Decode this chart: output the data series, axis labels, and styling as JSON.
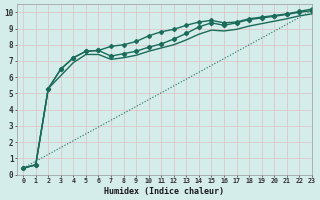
{
  "xlabel": "Humidex (Indice chaleur)",
  "xlim": [
    -0.5,
    23
  ],
  "ylim": [
    0,
    10.5
  ],
  "yticks": [
    0,
    1,
    2,
    3,
    4,
    5,
    6,
    7,
    8,
    9,
    10
  ],
  "xtick_vals": [
    0,
    1,
    2,
    3,
    4,
    5,
    6,
    7,
    8,
    9,
    10,
    11,
    12,
    13,
    14,
    15,
    16,
    17,
    18,
    19,
    20,
    21,
    22,
    23
  ],
  "bg_color": "#d4ecea",
  "grid_color": "#ddc8c8",
  "line_color": "#1a6b5a",
  "lines": [
    {
      "x": [
        0,
        1,
        2,
        3,
        4,
        5,
        6,
        7,
        8,
        9,
        10,
        11,
        12,
        13,
        14,
        15,
        16,
        17,
        18,
        19,
        20,
        21,
        22,
        23
      ],
      "y": [
        0.4,
        0.6,
        5.3,
        6.5,
        7.2,
        7.6,
        7.65,
        7.3,
        7.45,
        7.6,
        7.85,
        8.05,
        8.35,
        8.7,
        9.1,
        9.35,
        9.2,
        9.35,
        9.55,
        9.65,
        9.75,
        9.87,
        10.0,
        10.1
      ],
      "marker": "D",
      "markersize": 2.2,
      "linewidth": 1.0,
      "linestyle": "-"
    },
    {
      "x": [
        0,
        1,
        2,
        3,
        4,
        5,
        6,
        7,
        8,
        9,
        10,
        11,
        12,
        13,
        14,
        15,
        16,
        17,
        18,
        19,
        20,
        21,
        22,
        23
      ],
      "y": [
        0.4,
        0.6,
        5.3,
        6.5,
        7.2,
        7.6,
        7.65,
        7.9,
        8.0,
        8.2,
        8.55,
        8.8,
        8.95,
        9.2,
        9.4,
        9.5,
        9.35,
        9.4,
        9.6,
        9.7,
        9.8,
        9.9,
        10.05,
        10.2
      ],
      "marker": "P",
      "markersize": 2.5,
      "linewidth": 1.0,
      "linestyle": "-"
    },
    {
      "x": [
        0,
        1,
        2,
        3,
        4,
        5,
        6,
        7,
        8,
        9,
        10,
        11,
        12,
        13,
        14,
        15,
        16,
        17,
        18,
        19,
        20,
        21,
        22,
        23
      ],
      "y": [
        0.4,
        0.6,
        5.3,
        6.1,
        6.9,
        7.4,
        7.4,
        7.1,
        7.2,
        7.35,
        7.6,
        7.8,
        8.0,
        8.3,
        8.65,
        8.9,
        8.85,
        8.95,
        9.15,
        9.3,
        9.45,
        9.6,
        9.78,
        9.9
      ],
      "marker": null,
      "markersize": 0,
      "linewidth": 1.0,
      "linestyle": "-"
    },
    {
      "x": [
        0,
        23
      ],
      "y": [
        0.4,
        10.1
      ],
      "marker": null,
      "markersize": 0,
      "linewidth": 0.8,
      "linestyle": ":"
    }
  ]
}
